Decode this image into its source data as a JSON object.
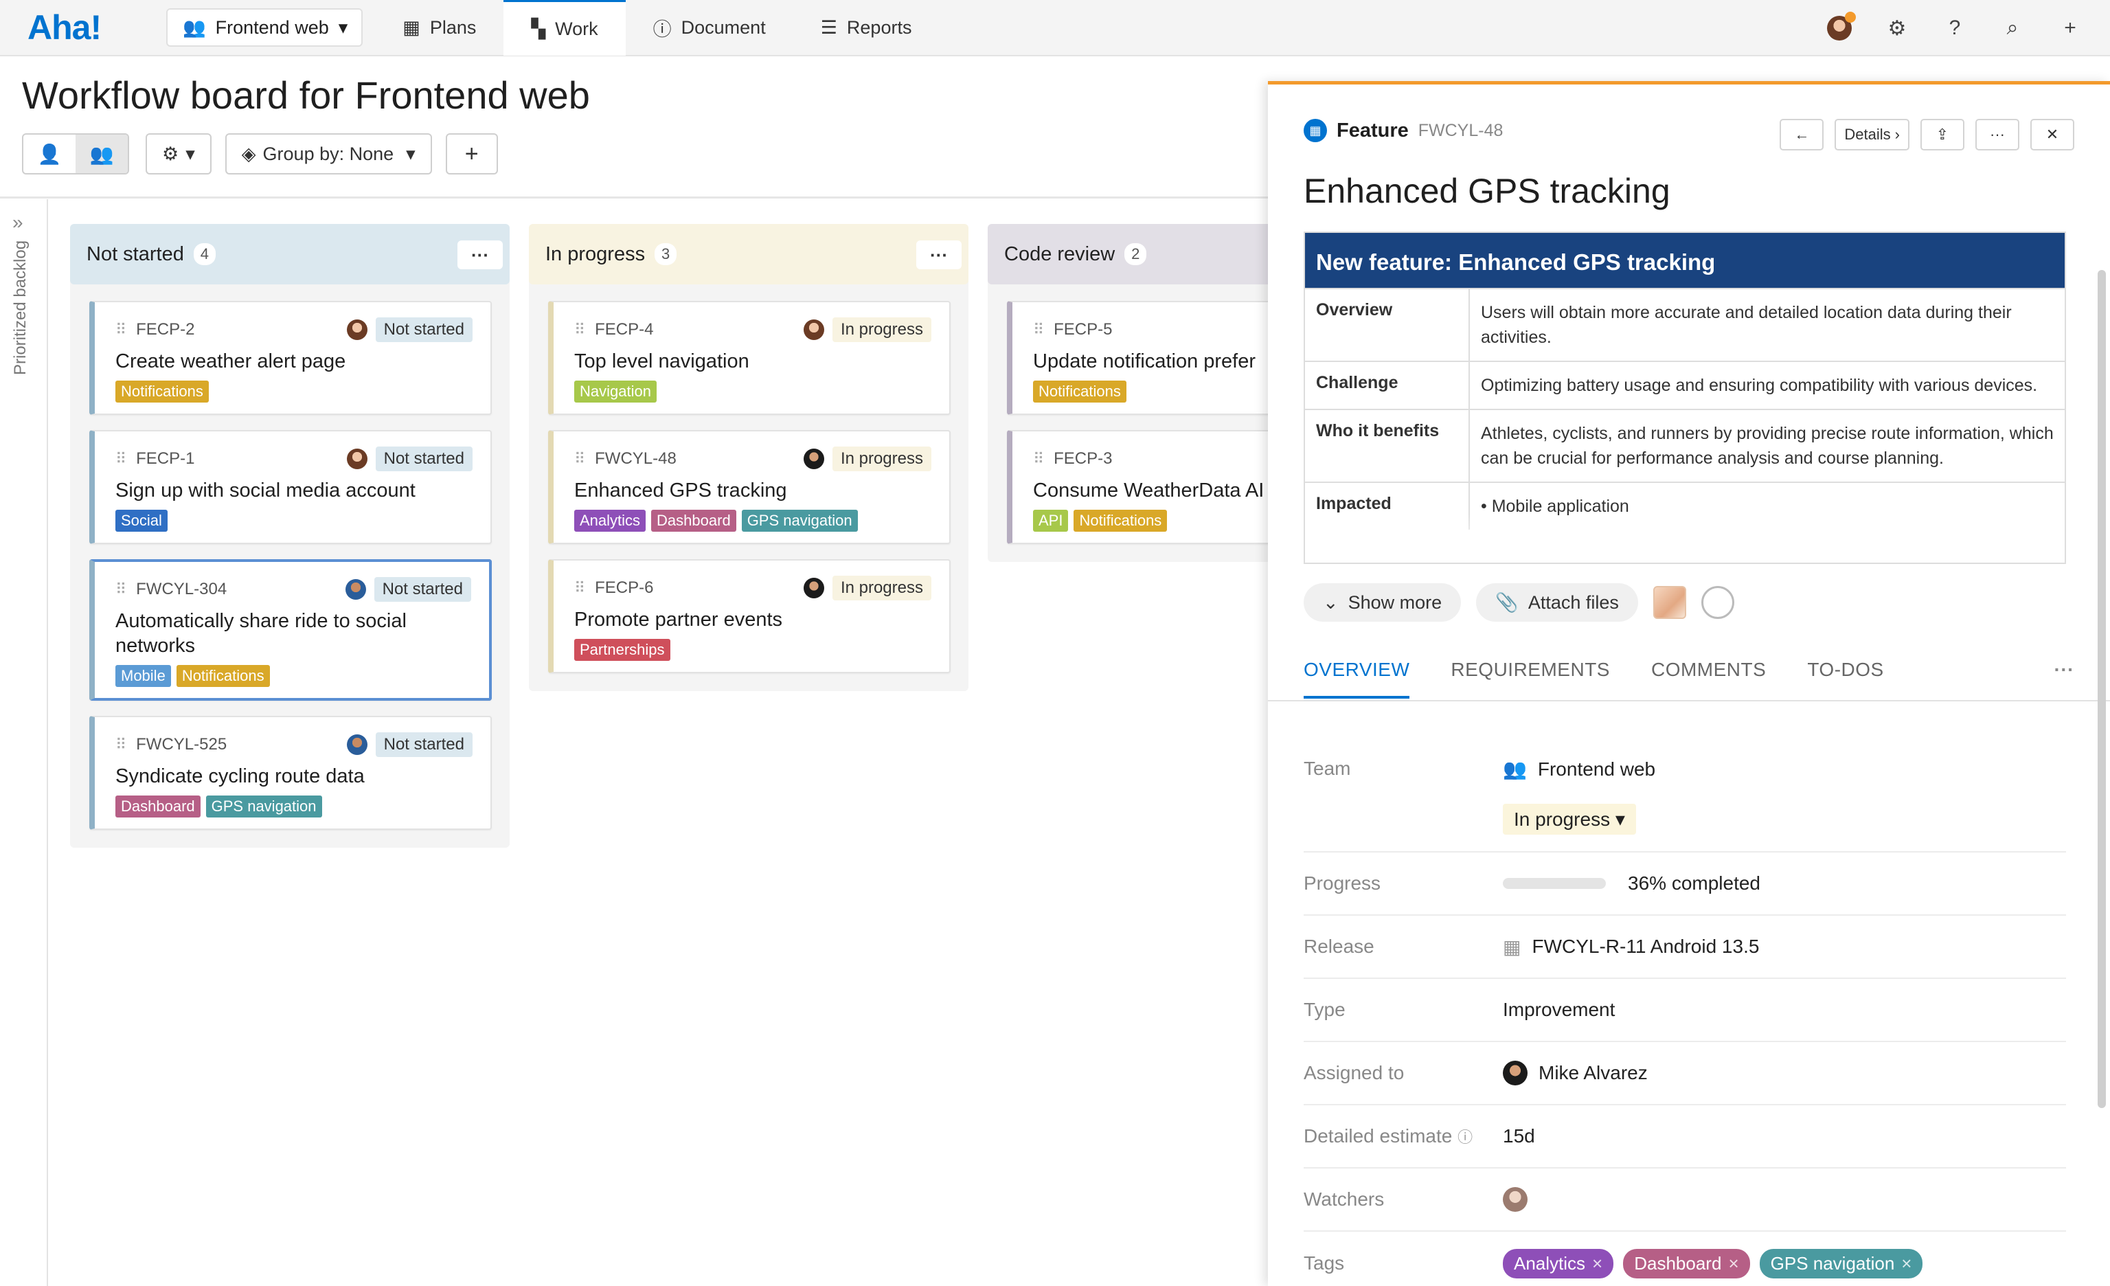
{
  "nav": {
    "logo": "Aha!",
    "workspace": "Frontend web",
    "tabs": [
      {
        "label": "Plans",
        "icon": "calendar-icon"
      },
      {
        "label": "Work",
        "icon": "grid-icon"
      },
      {
        "label": "Document",
        "icon": "info-icon"
      },
      {
        "label": "Reports",
        "icon": "reports-icon"
      }
    ]
  },
  "page": {
    "title": "Workflow board for Frontend web",
    "group_by": "Group by: None",
    "backlog_label": "Prioritized backlog"
  },
  "columns": [
    {
      "name": "Not started",
      "count": "4",
      "color": "#dbe8ef",
      "cards": [
        {
          "ref": "FECP-2",
          "status": "Not started",
          "title": "Create weather alert page",
          "tags": [
            {
              "label": "Notifications",
              "color": "#d9a828"
            }
          ]
        },
        {
          "ref": "FECP-1",
          "status": "Not started",
          "title": "Sign up with social media account",
          "tags": [
            {
              "label": "Social",
              "color": "#2f6fc4"
            }
          ]
        },
        {
          "ref": "FWCYL-304",
          "status": "Not started",
          "title": "Automatically share ride to social networks",
          "tags": [
            {
              "label": "Mobile",
              "color": "#5b9bd5"
            },
            {
              "label": "Notifications",
              "color": "#d9a828"
            }
          ]
        },
        {
          "ref": "FWCYL-525",
          "status": "Not started",
          "title": "Syndicate cycling route data",
          "tags": [
            {
              "label": "Dashboard",
              "color": "#b65f86"
            },
            {
              "label": "GPS navigation",
              "color": "#4a9aa0"
            }
          ]
        }
      ]
    },
    {
      "name": "In progress",
      "count": "3",
      "color": "#f8f3e1",
      "cards": [
        {
          "ref": "FECP-4",
          "status": "In progress",
          "title": "Top level navigation",
          "tags": [
            {
              "label": "Navigation",
              "color": "#a7c84a"
            }
          ]
        },
        {
          "ref": "FWCYL-48",
          "status": "In progress",
          "title": "Enhanced GPS tracking",
          "tags": [
            {
              "label": "Analytics",
              "color": "#8e4fb8"
            },
            {
              "label": "Dashboard",
              "color": "#b65f86"
            },
            {
              "label": "GPS navigation",
              "color": "#4a9aa0"
            }
          ]
        },
        {
          "ref": "FECP-6",
          "status": "In progress",
          "title": "Promote partner events",
          "tags": [
            {
              "label": "Partnerships",
              "color": "#cf4f5b"
            }
          ]
        }
      ]
    },
    {
      "name": "Code review",
      "count": "2",
      "color": "#e2dfe6",
      "cards": [
        {
          "ref": "FECP-5",
          "status": "",
          "title": "Update notification prefer",
          "tags": [
            {
              "label": "Notifications",
              "color": "#d9a828"
            }
          ]
        },
        {
          "ref": "FECP-3",
          "status": "",
          "title": "Consume WeatherData AI",
          "tags": [
            {
              "label": "API",
              "color": "#a7c84a"
            },
            {
              "label": "Notifications",
              "color": "#d9a828"
            }
          ]
        }
      ]
    }
  ],
  "panel": {
    "type": "Feature",
    "ref": "FWCYL-48",
    "title": "Enhanced GPS tracking",
    "details_label": "Details",
    "description": {
      "heading": "New feature: Enhanced GPS tracking",
      "rows": [
        {
          "key": "Overview",
          "value": "Users will obtain more accurate and detailed location data during their activities."
        },
        {
          "key": "Challenge",
          "value": "Optimizing battery usage and ensuring compatibility with various devices."
        },
        {
          "key": "Who it benefits",
          "value": "Athletes, cyclists, and runners by providing precise route information, which can be crucial for performance analysis and course planning."
        },
        {
          "key": "Impacted",
          "value": "• Mobile application"
        }
      ]
    },
    "show_more": "Show more",
    "attach_files": "Attach files",
    "tabs": [
      "OVERVIEW",
      "REQUIREMENTS",
      "COMMENTS",
      "TO-DOS"
    ],
    "fields": {
      "team_label": "Team",
      "team_value": "Frontend web",
      "status_value": "In progress",
      "progress_label": "Progress",
      "progress_value": "36% completed",
      "progress_fraction": 0.36,
      "release_label": "Release",
      "release_value": "FWCYL-R-11 Android 13.5",
      "type_label": "Type",
      "type_value": "Improvement",
      "assigned_label": "Assigned to",
      "assigned_value": "Mike Alvarez",
      "estimate_label": "Detailed estimate",
      "estimate_value": "15d",
      "watchers_label": "Watchers",
      "tags_label": "Tags",
      "tags": [
        {
          "label": "Analytics",
          "color": "#8e4fb8"
        },
        {
          "label": "Dashboard",
          "color": "#b65f86"
        },
        {
          "label": "GPS navigation",
          "color": "#4a9aa0"
        }
      ]
    }
  }
}
